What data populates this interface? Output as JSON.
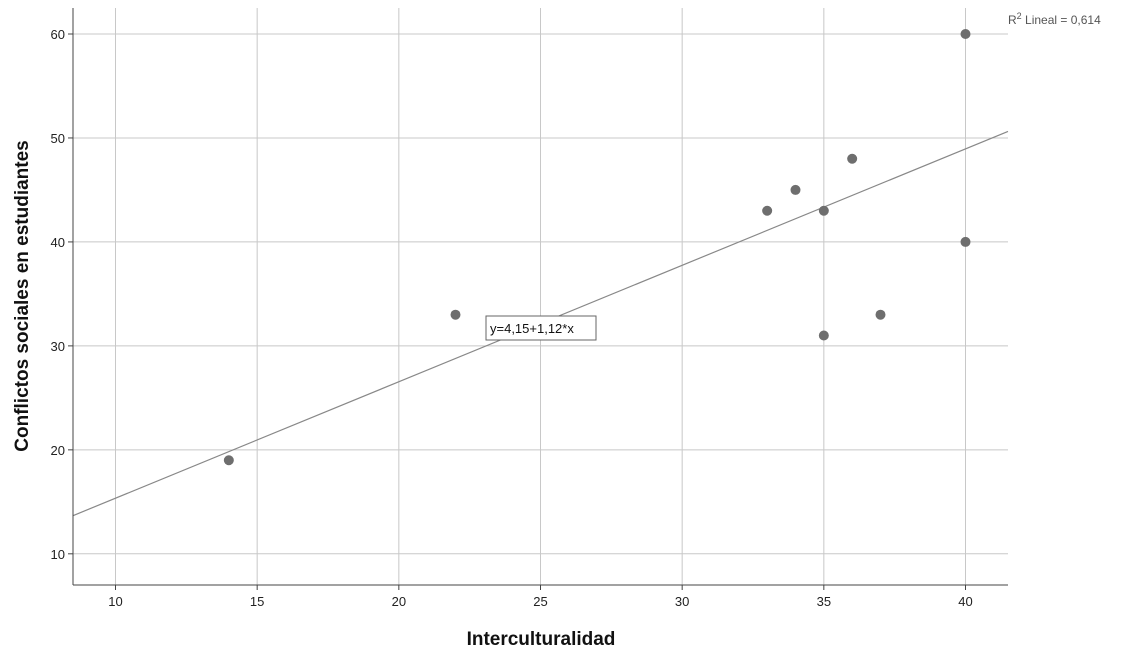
{
  "chart_data": {
    "type": "scatter",
    "title": "",
    "xlabel": "Interculturalidad",
    "ylabel": "Conflictos sociales en estudiantes",
    "xlim": [
      8.5,
      41.5
    ],
    "ylim": [
      7,
      62.5
    ],
    "xticks": [
      10,
      15,
      20,
      25,
      30,
      35,
      40
    ],
    "yticks": [
      10,
      20,
      30,
      40,
      50,
      60
    ],
    "grid": true,
    "points": [
      {
        "x": 14,
        "y": 19
      },
      {
        "x": 22,
        "y": 33
      },
      {
        "x": 33,
        "y": 43
      },
      {
        "x": 34,
        "y": 45
      },
      {
        "x": 35,
        "y": 43
      },
      {
        "x": 35,
        "y": 31
      },
      {
        "x": 36,
        "y": 48
      },
      {
        "x": 37,
        "y": 33
      },
      {
        "x": 40,
        "y": 60
      },
      {
        "x": 40,
        "y": 40
      }
    ],
    "fit_line": {
      "intercept": 4.15,
      "slope": 1.12
    },
    "equation_label": "y=4,15+1,12*x",
    "r2_label_prefix": "R",
    "r2_label_sup": "2",
    "r2_label_suffix": " Lineal = 0,614",
    "colors": {
      "points": "#6e6e6e",
      "grid": "#c8c8c8",
      "axis": "#444444",
      "fit": "#888888"
    }
  }
}
